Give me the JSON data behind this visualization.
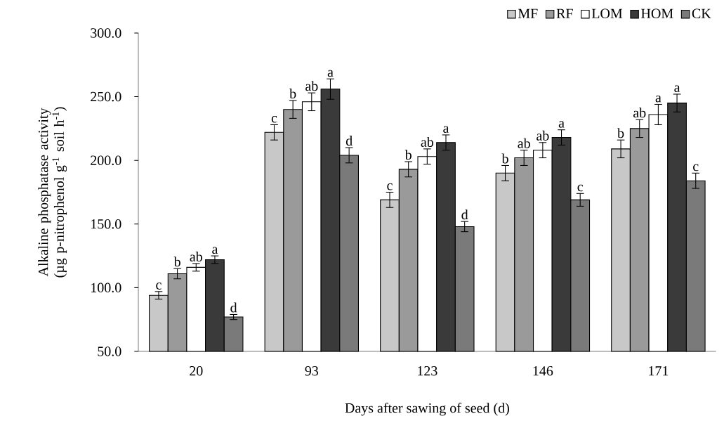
{
  "chart_data": {
    "type": "bar",
    "xlabel": "Days after sawing of seed (d)",
    "ylabel": "Alkaline phosphatase activity (µg p-nitrophenol g$^{-1}$ soil h$^{-1}$)",
    "categories": [
      "20",
      "93",
      "123",
      "146",
      "171"
    ],
    "ylim": [
      50,
      300
    ],
    "yticks": [
      {
        "value": 50,
        "label": "50.0"
      },
      {
        "value": 100,
        "label": "100.0"
      },
      {
        "value": 150,
        "label": "150.0"
      },
      {
        "value": 200,
        "label": "200.0"
      },
      {
        "value": 250,
        "label": "250.0"
      },
      {
        "value": 300,
        "label": "300.0"
      }
    ],
    "legend": "top right",
    "grid": false,
    "series": [
      {
        "name": "MF",
        "color": "#c8c8c8",
        "values": [
          94,
          222,
          169,
          190,
          209
        ],
        "errors": [
          3,
          6,
          6,
          6,
          7
        ],
        "value_labels": [
          "c",
          "c",
          "c",
          "b",
          "b"
        ]
      },
      {
        "name": "RF",
        "color": "#9a9a9a",
        "values": [
          111,
          240,
          193,
          202,
          225
        ],
        "errors": [
          4,
          7,
          6,
          6,
          7
        ],
        "value_labels": [
          "b",
          "b",
          "b",
          "ab",
          "ab"
        ]
      },
      {
        "name": "LOM",
        "color": "#ffffff",
        "values": [
          116,
          246,
          203,
          208,
          236
        ],
        "errors": [
          3,
          7,
          6,
          6,
          8
        ],
        "value_labels": [
          "ab",
          "ab",
          "ab",
          "ab",
          "a"
        ]
      },
      {
        "name": "HOM",
        "color": "#3a3a3a",
        "values": [
          122,
          256,
          214,
          218,
          245
        ],
        "errors": [
          3,
          8,
          6,
          6,
          7
        ],
        "value_labels": [
          "a",
          "a",
          "a",
          "a",
          "a"
        ]
      },
      {
        "name": "CK",
        "color": "#7a7a7a",
        "values": [
          77,
          204,
          148,
          169,
          184
        ],
        "errors": [
          2,
          6,
          4,
          5,
          6
        ],
        "value_labels": [
          "d",
          "d",
          "d",
          "c",
          "c"
        ]
      }
    ]
  }
}
